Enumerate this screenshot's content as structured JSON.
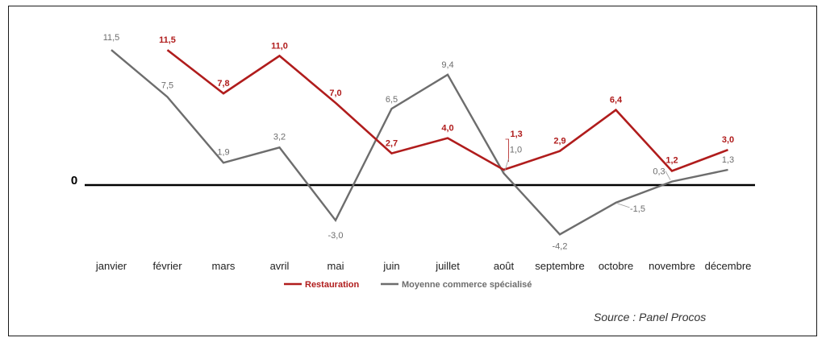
{
  "chart_data": {
    "type": "line",
    "categories": [
      "janvier",
      "février",
      "mars",
      "avril",
      "mai",
      "juin",
      "juillet",
      "août",
      "septembre",
      "octobre",
      "novembre",
      "décembre"
    ],
    "series": [
      {
        "name": "Restauration",
        "color": "#b01c1c",
        "values": [
          null,
          11.5,
          7.8,
          11.0,
          7.0,
          2.7,
          4.0,
          1.3,
          2.9,
          6.4,
          1.2,
          3.0
        ],
        "labels": [
          "",
          "11,5",
          "7,8",
          "11,0",
          "7,0",
          "2,7",
          "4,0",
          "1,3",
          "2,9",
          "6,4",
          "1,2",
          "3,0"
        ]
      },
      {
        "name": "Moyenne commerce spécialisé",
        "color": "#6d6d6d",
        "values": [
          11.5,
          7.5,
          1.9,
          3.2,
          -3.0,
          6.5,
          9.4,
          1.0,
          -4.2,
          -1.5,
          0.3,
          1.3
        ],
        "labels": [
          "11,5",
          "7,5",
          "1,9",
          "3,2",
          "-3,0",
          "6,5",
          "9,4",
          "1,0",
          "-4,2",
          "-1,5",
          "0,3",
          "1,3"
        ]
      }
    ],
    "zero_label": "0",
    "ylim": [
      -5,
      12.5
    ],
    "grid": false,
    "legend_position": "bottom-left"
  },
  "source": "Source : Panel Procos"
}
